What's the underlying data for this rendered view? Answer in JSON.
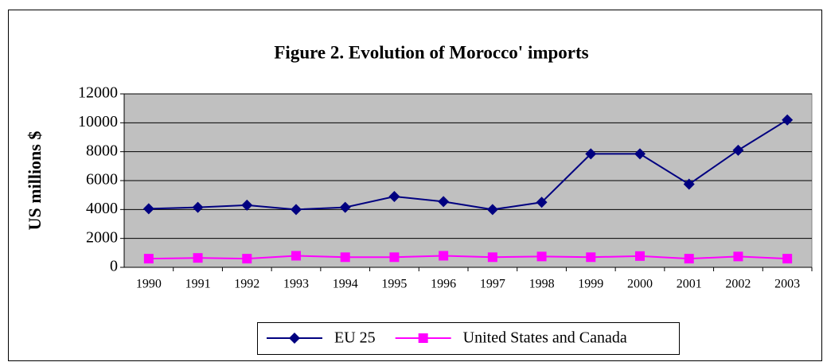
{
  "chart_data": {
    "type": "line",
    "title": "Figure 2. Evolution of Morocco' imports",
    "y_label": "US millions $",
    "categories": [
      "1990",
      "1991",
      "1992",
      "1993",
      "1994",
      "1995",
      "1996",
      "1997",
      "1998",
      "1999",
      "2000",
      "2001",
      "2002",
      "2003"
    ],
    "series": [
      {
        "name": "EU 25",
        "color": "#000080",
        "marker": "diamond",
        "values": [
          4050,
          4150,
          4300,
          4000,
          4150,
          4900,
          4550,
          4000,
          4500,
          7850,
          7850,
          5750,
          8100,
          10200
        ]
      },
      {
        "name": "United States and Canada",
        "color": "#ff00ff",
        "marker": "square",
        "values": [
          600,
          650,
          600,
          800,
          700,
          700,
          800,
          700,
          750,
          700,
          780,
          600,
          750,
          600
        ]
      }
    ],
    "ylim": [
      0,
      12000
    ],
    "yticks": [
      0,
      2000,
      4000,
      6000,
      8000,
      10000,
      12000
    ],
    "grid": true,
    "legend": "bottom"
  }
}
